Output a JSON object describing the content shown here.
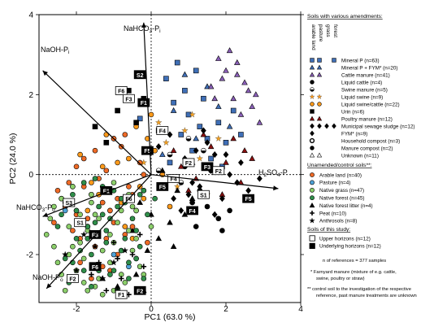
{
  "chart_data": {
    "type": "scatter",
    "xlabel": "PC1 (63.0 %)",
    "ylabel": "PC2 (24.0 %)",
    "xlim": [
      -3,
      4
    ],
    "ylim": [
      -3.2,
      4
    ],
    "xticks": [
      "-2",
      "0",
      "2",
      "4"
    ],
    "yticks": [
      "4",
      "2",
      "0",
      "-2"
    ],
    "grid": false,
    "legend_position": "right",
    "vectors": [
      {
        "label": "NaHCO3-Pi",
        "x": -0.2,
        "y": 3.8
      },
      {
        "label": "NaOH-Pi",
        "x": -2.9,
        "y": 2.6
      },
      {
        "label": "H2SO4-P",
        "x": 3.4,
        "y": -0.35
      },
      {
        "label": "NaHCO3-Po",
        "x": -2.9,
        "y": -1.05
      },
      {
        "label": "NaOH-Po",
        "x": -2.8,
        "y": -2.85
      }
    ],
    "series": [
      {
        "name": "Mineral P (n=63)",
        "color": "#3f6fb7",
        "marker": "square",
        "x": [
          1.0,
          1.3,
          0.9,
          1.5,
          0.6,
          1.1,
          1.8,
          0.4,
          2.0,
          0.8,
          1.4,
          1.6,
          0.2,
          2.2,
          0.5,
          -0.3,
          1.2,
          0.7,
          1.9,
          2.4
        ],
        "y": [
          1.5,
          1.2,
          2.1,
          0.9,
          1.8,
          0.6,
          1.3,
          2.4,
          0.8,
          1.0,
          1.9,
          0.4,
          1.1,
          1.6,
          0.3,
          1.4,
          2.6,
          2.8,
          0.2,
          1.0
        ]
      },
      {
        "name": "Mineral P + FYM* (n=20)",
        "color": "#3f6fb7",
        "marker": "triangle",
        "x": [
          1.2,
          0.6,
          1.8,
          0.3,
          1.5,
          2.1,
          0.9,
          1.1
        ],
        "y": [
          0.9,
          1.6,
          1.7,
          0.5,
          2.2,
          1.2,
          2.5,
          0.3
        ]
      },
      {
        "name": "Cattle manure (n=41)",
        "color": "#8a5fb8",
        "marker": "triangle",
        "x": [
          2.2,
          2.5,
          1.9,
          2.7,
          2.0,
          2.3,
          1.7,
          2.6,
          2.1,
          2.4,
          1.8,
          2.8,
          1.6,
          2.9,
          2.3
        ],
        "y": [
          1.9,
          2.3,
          2.4,
          1.7,
          2.6,
          2.8,
          1.9,
          2.1,
          3.1,
          1.5,
          2.9,
          2.0,
          2.2,
          1.3,
          2.5
        ]
      },
      {
        "name": "Liquid cattle (n=4)",
        "color": "#000000",
        "marker": "circle",
        "x": [
          1.3,
          0.9,
          1.6,
          1.1
        ],
        "y": [
          -0.4,
          0.2,
          0.1,
          -0.7
        ]
      },
      {
        "name": "Swine manure (n=5)",
        "color": "#000000",
        "marker": "halfcircle",
        "x": [
          0.5,
          0.8,
          1.4,
          0.2,
          1.0
        ],
        "y": [
          0.5,
          -0.2,
          0.6,
          0.1,
          0.9
        ]
      },
      {
        "name": "Liquid swine (n=9)",
        "color": "#f4a020",
        "marker": "star",
        "x": [
          0.4,
          0.9,
          1.3,
          -0.2,
          0.7,
          1.8,
          1.1,
          0.2,
          1.5
        ],
        "y": [
          0.8,
          1.1,
          0.4,
          0.3,
          -0.3,
          0.9,
          1.5,
          1.3,
          -0.5
        ]
      },
      {
        "name": "Liquid swine/cattle (n=22)",
        "color": "#ff9a1a",
        "marker": "circle",
        "x": [
          -0.6,
          -1.0,
          -0.3,
          -1.3,
          -0.8,
          0.1,
          -1.6,
          -0.4,
          -1.1,
          0.3,
          -0.7,
          -1.9,
          -0.2,
          -1.4,
          0.0,
          -0.9,
          -1.7,
          0.5,
          -0.5,
          -1.2,
          -2.1,
          -0.1
        ],
        "y": [
          0.4,
          0.9,
          -0.3,
          0.2,
          -0.7,
          0.6,
          -0.2,
          1.2,
          -0.9,
          0.0,
          -1.3,
          0.5,
          -0.6,
          -0.5,
          1.5,
          0.3,
          -0.9,
          -0.8,
          -1.6,
          1.0,
          -0.3,
          0.9
        ]
      },
      {
        "name": "Urin (n=6)",
        "color": "#000000",
        "marker": "square",
        "x": [
          -0.9,
          -0.4,
          -1.2,
          -0.6,
          -0.2,
          -1.5
        ],
        "y": [
          1.6,
          1.3,
          0.8,
          2.1,
          1.9,
          1.2
        ]
      },
      {
        "name": "Poultry manure (n=12)",
        "color": "#8a1010",
        "marker": "triangle",
        "x": [
          0.8,
          1.2,
          2.0,
          1.6,
          2.4,
          0.6,
          1.9,
          2.2,
          1.4,
          2.7,
          1.0,
          2.5
        ],
        "y": [
          0.2,
          -0.1,
          0.3,
          0.7,
          -0.2,
          0.6,
          -0.5,
          0.9,
          1.0,
          0.4,
          -0.4,
          0.6
        ]
      },
      {
        "name": "Municipal sewage sludge (n=12)",
        "color": "#000000",
        "marker": "diamond",
        "x": [
          1.3,
          1.9,
          2.3,
          0.8,
          1.6,
          2.6,
          1.0,
          2.0,
          2.9,
          1.7,
          2.4,
          1.2
        ],
        "y": [
          -0.3,
          -0.6,
          -0.2,
          -0.9,
          0.1,
          -0.4,
          -0.5,
          0.5,
          -0.1,
          -1.0,
          0.3,
          0.6
        ]
      },
      {
        "name": "FYM* (n=9)",
        "color": "#000000",
        "marker": "diamond",
        "x": [
          0.5,
          0.9,
          1.4,
          0.2,
          1.7,
          1.1,
          0.6,
          2.1,
          1.5
        ],
        "y": [
          1.0,
          0.4,
          1.1,
          0.7,
          0.5,
          -0.2,
          -0.6,
          0.0,
          0.8
        ]
      },
      {
        "name": "Household compost (n=3)",
        "color": "#000000",
        "marker": "circle",
        "x": [
          1.5,
          1.8,
          1.2
        ],
        "y": [
          -0.8,
          -1.1,
          -1.3
        ]
      },
      {
        "name": "Manure compost (n=2)",
        "color": "#000000",
        "marker": "circle",
        "x": [
          2.1,
          1.9
        ],
        "y": [
          -0.9,
          -1.4
        ]
      },
      {
        "name": "Unknown (n=11)",
        "color": "#000000",
        "marker": "triangle",
        "x": [
          0.3,
          0.7,
          -0.3,
          1.1,
          0.0,
          0.5,
          -0.5,
          0.9,
          0.2,
          -0.1,
          0.6
        ],
        "y": [
          0.1,
          -0.4,
          -0.7,
          -0.6,
          -1.0,
          -1.2,
          -1.4,
          -1.0,
          -1.6,
          -1.9,
          -1.8
        ]
      },
      {
        "name": "Arable land (n=40)",
        "color": "#ef6a26",
        "marker": "circle",
        "x": [
          -1.0,
          -1.6,
          -0.4,
          -1.9,
          -1.2,
          -2.2,
          -0.7,
          -1.5,
          -0.2,
          -2.0,
          -1.3,
          -0.9,
          -1.8,
          -0.5,
          -2.4,
          -1.1,
          -0.3,
          -1.7,
          -0.8,
          -2.1,
          -1.4,
          -0.6,
          -1.9,
          -0.1,
          -1.0,
          -2.3,
          -1.5,
          -0.4,
          -1.2,
          -2.6,
          -0.9,
          -1.6,
          -0.2,
          -1.8,
          -0.7,
          -2.0,
          -1.3,
          -0.5,
          -1.1,
          -2.5
        ],
        "y": [
          -1.2,
          -0.5,
          -0.9,
          -1.6,
          0.1,
          -0.2,
          -1.5,
          -1.8,
          -0.4,
          -1.0,
          -0.7,
          -2.0,
          0.4,
          -1.3,
          -0.6,
          -2.4,
          0.3,
          -1.1,
          0.7,
          -1.4,
          -0.1,
          -0.3,
          -2.2,
          -1.7,
          0.9,
          -0.8,
          0.6,
          -2.1,
          -1.6,
          -1.2,
          -0.6,
          -2.6,
          0.0,
          -0.3,
          1.0,
          0.2,
          -2.3,
          -0.5,
          -0.9,
          -0.4
        ]
      },
      {
        "name": "Pasture (n=4)",
        "color": "#4fa3d8",
        "marker": "circle",
        "x": [
          -1.7,
          -1.0,
          -2.3,
          -0.6
        ],
        "y": [
          -1.3,
          -2.0,
          -0.9,
          -2.3
        ]
      },
      {
        "name": "Native grass (n=47)",
        "color": "#8ccf6b",
        "marker": "circle",
        "x": [
          -1.1,
          -1.8,
          -0.5,
          -2.2,
          -1.4,
          -0.8,
          -2.6,
          -1.6,
          -0.3,
          -2.0,
          -1.2,
          -2.4,
          -0.7,
          -1.9,
          -1.0,
          -2.7,
          -0.4,
          -1.5,
          -2.1,
          -0.9,
          -1.3,
          -2.5,
          -0.6,
          -1.7,
          -2.3,
          -1.0,
          -0.2,
          -1.8,
          -2.0,
          -1.4,
          0.0,
          -2.8,
          -1.1,
          -0.5,
          -1.6,
          -2.2,
          -0.8,
          -1.9,
          -1.3,
          -2.6,
          -0.4,
          -1.0,
          -1.7,
          -2.4,
          -0.6,
          -1.5,
          -2.1
        ],
        "y": [
          -1.5,
          -2.1,
          -1.9,
          -1.3,
          -2.6,
          -0.9,
          -1.8,
          -0.7,
          -2.3,
          -2.4,
          -0.4,
          -0.6,
          -2.7,
          -1.0,
          -2.9,
          -1.1,
          -1.6,
          -2.8,
          -0.3,
          -1.2,
          -1.9,
          -2.2,
          -0.5,
          -1.4,
          -2.9,
          -0.2,
          -2.5,
          -2.7,
          -0.9,
          -1.1,
          -1.3,
          -1.5,
          -2.2,
          -0.8,
          -0.5,
          -2.0,
          -2.5,
          -1.7,
          -3.0,
          -0.8,
          -0.9,
          -1.7,
          -2.9,
          -2.5,
          -1.4,
          -1.0,
          -1.8
        ]
      },
      {
        "name": "Native forest (n=45)",
        "color": "#2f8f4a",
        "marker": "circle",
        "x": [
          -0.9,
          -1.5,
          -0.3,
          -2.0,
          -1.2,
          -0.6,
          -2.3,
          -1.8,
          -0.1,
          -1.0,
          -1.6,
          -0.4,
          -2.1,
          -1.3,
          -0.8,
          -2.5,
          -1.1,
          -0.2,
          -1.7,
          -0.7,
          -1.4,
          -2.2,
          -0.5,
          -1.9,
          -1.0,
          -0.3,
          -1.5,
          -2.4,
          -0.9,
          -1.2,
          -0.6,
          -1.8,
          -2.0,
          -0.4,
          -1.3,
          -0.8,
          -1.6,
          -2.3,
          -1.1,
          0.1,
          -0.7,
          -1.4,
          -2.1,
          -0.2,
          -1.7
        ],
        "y": [
          -0.8,
          -1.2,
          -0.5,
          -0.9,
          -1.7,
          -2.2,
          -2.1,
          -0.2,
          -1.0,
          -2.4,
          -2.8,
          -1.4,
          -0.5,
          -0.3,
          -1.9,
          -1.3,
          -1.1,
          -2.6,
          -1.6,
          -0.7,
          -2.4,
          -2.7,
          -1.1,
          -1.9,
          -0.4,
          -1.8,
          -0.1,
          -1.0,
          -2.9,
          -1.4,
          -2.6,
          -2.4,
          -1.6,
          -2.1,
          -1.0,
          -0.6,
          -2.0,
          -0.7,
          -2.5,
          -0.6,
          -1.6,
          -0.8,
          -2.2,
          -0.4,
          -1.3
        ]
      },
      {
        "name": "Native forest litter (n=4)",
        "color": "#000000",
        "marker": "triangle",
        "x": [
          -0.4,
          -0.9,
          -0.2,
          -1.3
        ],
        "y": [
          -2.5,
          -2.8,
          -2.9,
          -2.6
        ]
      },
      {
        "name": "Peat (n=10)",
        "color": "#000000",
        "marker": "plus",
        "x": [
          -0.5,
          -1.0,
          -0.2,
          -0.8,
          -1.4,
          -0.6,
          -1.2,
          -0.3,
          -0.9,
          -1.6
        ],
        "y": [
          -2.0,
          -1.7,
          -2.3,
          -2.6,
          -2.2,
          -3.0,
          -2.9,
          -1.5,
          -2.1,
          -2.5
        ]
      },
      {
        "name": "Anthrosols (n=8)",
        "color": "#000000",
        "marker": "star",
        "x": [
          -1.5,
          -1.0,
          -2.0,
          -0.7,
          -1.3,
          -1.8,
          -0.9,
          -2.3
        ],
        "y": [
          -1.8,
          -2.2,
          -2.4,
          -1.9,
          -2.6,
          -1.5,
          -2.9,
          -2.0
        ]
      }
    ],
    "point_labels": [
      {
        "text": "F6",
        "x": -0.8,
        "y": 2.1
      },
      {
        "text": "S2",
        "x": -0.3,
        "y": 2.5
      },
      {
        "text": "F3",
        "x": -0.6,
        "y": 1.9
      },
      {
        "text": "F1",
        "x": -0.2,
        "y": 1.8
      },
      {
        "text": "F4",
        "x": 0.3,
        "y": 1.1
      },
      {
        "text": "F5",
        "x": -0.1,
        "y": 0.6
      },
      {
        "text": "F2",
        "x": 1.0,
        "y": 0.3
      },
      {
        "text": "F3",
        "x": 1.5,
        "y": 0.2
      },
      {
        "text": "F4",
        "x": 0.6,
        "y": -0.1
      },
      {
        "text": "F5",
        "x": 0.3,
        "y": -0.3
      },
      {
        "text": "F6",
        "x": -0.6,
        "y": -0.6
      },
      {
        "text": "F1",
        "x": -1.2,
        "y": -0.4
      },
      {
        "text": "F2",
        "x": 1.8,
        "y": 0.1
      },
      {
        "text": "F4",
        "x": 1.1,
        "y": -0.9
      },
      {
        "text": "S1",
        "x": 1.4,
        "y": -0.5
      },
      {
        "text": "F5",
        "x": 2.6,
        "y": -0.6
      },
      {
        "text": "S1",
        "x": -1.9,
        "y": -1.2
      },
      {
        "text": "F3",
        "x": -1.5,
        "y": -1.5
      },
      {
        "text": "S3",
        "x": -2.2,
        "y": -0.7
      },
      {
        "text": "F6",
        "x": -1.5,
        "y": -2.3
      },
      {
        "text": "F2",
        "x": -2.1,
        "y": -2.6
      },
      {
        "text": "F2",
        "x": -0.3,
        "y": -2.9
      },
      {
        "text": "F1",
        "x": -0.8,
        "y": -3.0
      }
    ]
  },
  "legend": {
    "title_soils": "Soils with various amendments:",
    "column_headers": [
      "arable land",
      "pasture",
      "grass",
      "forest"
    ],
    "amendments": [
      {
        "label": "Mineral P (n=63)"
      },
      {
        "label": "Mineral P + FYM* (n=20)"
      },
      {
        "label": "Cattle manure (n=41)"
      },
      {
        "label": "Liquid cattle (n=4)"
      },
      {
        "label": "Swine manure (n=5)"
      },
      {
        "label": "Liquid swine (n=9)"
      },
      {
        "label": "Liquid swine/cattle (n=22)"
      },
      {
        "label": "Urin (n=6)"
      },
      {
        "label": "Poultry manure (n=12)"
      },
      {
        "label": "Municipal sewage sludge (n=12)"
      },
      {
        "label": "FYM* (n=9)"
      },
      {
        "label": "Household compost (n=3)"
      },
      {
        "label": "Manure compost (n=2)"
      },
      {
        "label": "Unknown (n=11)"
      }
    ],
    "title_control": "Unamended/control soils**:",
    "controls": [
      {
        "label": "Arable land (n=40)"
      },
      {
        "label": "Pasture (n=4)"
      },
      {
        "label": "Native grass (n=47)"
      },
      {
        "label": "Native forest (n=45)"
      },
      {
        "label": "Native forest litter (n=4)"
      },
      {
        "label": "Peat (n=10)"
      },
      {
        "label": "Anthrosols (n=8)"
      }
    ],
    "title_study": "Soils of this study:",
    "study": [
      {
        "label": "Upper horizons (n=12)"
      },
      {
        "label": "Underlying horizons (n=12)"
      }
    ],
    "n_refs": "n of references = 377 samples",
    "footnote1_l1": "* Farnyard manure (mixture of e.g. cattle,",
    "footnote1_l2": "swine, poultry or straw)",
    "footnote2_l1": "** control soil to the investigation of the respective",
    "footnote2_l2": "reference, past manure treatments are unknown"
  },
  "colors": {
    "mineral_blue": "#3f6fb7",
    "cattle_purple": "#8a5fb8",
    "swine_orange": "#ff9a1a",
    "arable_orange": "#ef6a26",
    "pasture_blue": "#4fa3d8",
    "grass_green": "#8ccf6b",
    "forest_green": "#2f8f4a",
    "poultry_red": "#8a1010"
  }
}
